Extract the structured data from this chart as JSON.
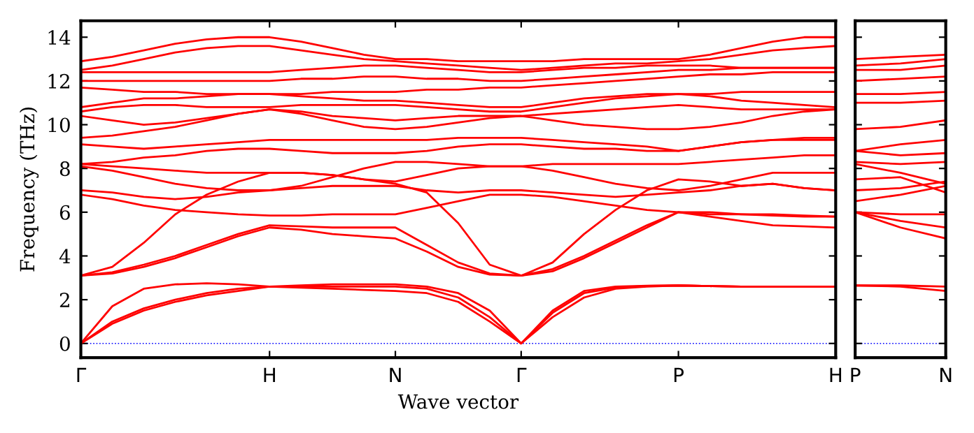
{
  "chart_data": [
    {
      "type": "line",
      "xlabel": "Wave vector",
      "ylabel": "Frequency (THz)",
      "line_style": "solid",
      "marker": "none",
      "grid": false,
      "legend": false,
      "categories": [
        "Γ",
        null,
        null,
        null,
        null,
        null,
        "H",
        null,
        null,
        null,
        "N",
        null,
        null,
        null,
        "Γ",
        null,
        null,
        null,
        null,
        "P",
        null,
        null,
        null,
        null,
        "H"
      ],
      "ylim": [
        -0.65,
        14.75
      ],
      "yticks": [
        0,
        2,
        4,
        6,
        8,
        10,
        12,
        14
      ],
      "ref_lines": [
        {
          "axis": "y",
          "value": 0,
          "color": "#0000ff",
          "line_style": "dotted"
        }
      ],
      "series": [
        {
          "color": "#ff0000",
          "values": [
            0,
            0.9,
            1.5,
            1.9,
            2.2,
            2.4,
            2.6,
            2.55,
            2.5,
            2.45,
            2.4,
            2.3,
            1.9,
            1.0,
            0,
            1.2,
            2.1,
            2.5,
            2.6,
            2.65,
            2.62,
            2.6,
            2.6,
            2.6,
            2.6
          ]
        },
        {
          "color": "#ff0000",
          "values": [
            0,
            1.0,
            1.6,
            2.0,
            2.3,
            2.5,
            2.6,
            2.6,
            2.6,
            2.6,
            2.6,
            2.5,
            2.1,
            1.2,
            0,
            1.4,
            2.3,
            2.55,
            2.63,
            2.65,
            2.62,
            2.6,
            2.6,
            2.6,
            2.6
          ]
        },
        {
          "color": "#ff0000",
          "values": [
            0,
            1.7,
            2.5,
            2.7,
            2.75,
            2.7,
            2.6,
            2.65,
            2.7,
            2.7,
            2.7,
            2.6,
            2.3,
            1.5,
            0,
            1.5,
            2.4,
            2.6,
            2.64,
            2.65,
            2.62,
            2.6,
            2.6,
            2.6,
            2.6
          ]
        },
        {
          "color": "#ff0000",
          "values": [
            3.1,
            3.2,
            3.5,
            3.9,
            4.4,
            4.9,
            5.3,
            5.2,
            5.0,
            4.9,
            4.8,
            4.2,
            3.5,
            3.15,
            3.1,
            3.3,
            3.9,
            4.6,
            5.3,
            6.0,
            5.8,
            5.6,
            5.4,
            5.35,
            5.3
          ]
        },
        {
          "color": "#ff0000",
          "values": [
            3.1,
            3.25,
            3.6,
            4.0,
            4.5,
            5.0,
            5.4,
            5.35,
            5.3,
            5.3,
            5.3,
            4.5,
            3.7,
            3.2,
            3.1,
            3.4,
            4.0,
            4.7,
            5.4,
            6.0,
            6.0,
            5.9,
            5.9,
            5.85,
            5.8
          ]
        },
        {
          "color": "#ff0000",
          "values": [
            3.1,
            3.5,
            4.6,
            5.9,
            6.8,
            7.4,
            7.8,
            7.8,
            7.7,
            7.5,
            7.3,
            6.9,
            5.5,
            3.6,
            3.1,
            3.7,
            5.0,
            6.1,
            7.0,
            7.5,
            7.4,
            7.2,
            7.3,
            7.1,
            7.0
          ]
        },
        {
          "color": "#ff0000",
          "values": [
            6.8,
            6.6,
            6.3,
            6.1,
            6.0,
            5.9,
            5.85,
            5.85,
            5.9,
            5.9,
            5.9,
            6.2,
            6.5,
            6.8,
            6.8,
            6.7,
            6.5,
            6.3,
            6.1,
            6.0,
            5.9,
            5.9,
            5.85,
            5.8,
            5.8
          ]
        },
        {
          "color": "#ff0000",
          "values": [
            7.0,
            6.9,
            6.7,
            6.6,
            6.7,
            6.9,
            7.0,
            7.1,
            7.2,
            7.2,
            7.2,
            7.0,
            6.9,
            7.0,
            7.0,
            6.9,
            6.8,
            6.7,
            6.8,
            6.9,
            7.0,
            7.2,
            7.3,
            7.1,
            7.0
          ]
        },
        {
          "color": "#ff0000",
          "values": [
            8.1,
            7.9,
            7.6,
            7.3,
            7.1,
            7.0,
            7.0,
            7.2,
            7.6,
            8.0,
            8.3,
            8.3,
            8.2,
            8.1,
            8.1,
            7.9,
            7.6,
            7.3,
            7.1,
            7.0,
            7.2,
            7.5,
            7.8,
            7.8,
            7.8
          ]
        },
        {
          "color": "#ff0000",
          "values": [
            8.2,
            8.1,
            8.0,
            7.9,
            7.8,
            7.8,
            7.8,
            7.8,
            7.7,
            7.5,
            7.4,
            7.7,
            8.0,
            8.1,
            8.1,
            8.2,
            8.2,
            8.2,
            8.2,
            8.2,
            8.3,
            8.4,
            8.5,
            8.6,
            8.6
          ]
        },
        {
          "color": "#ff0000",
          "values": [
            8.2,
            8.3,
            8.5,
            8.6,
            8.8,
            8.9,
            8.9,
            8.8,
            8.7,
            8.7,
            8.7,
            8.8,
            9.0,
            9.1,
            9.1,
            9.0,
            8.9,
            8.9,
            8.8,
            8.8,
            9.0,
            9.2,
            9.3,
            9.3,
            9.3
          ]
        },
        {
          "color": "#ff0000",
          "values": [
            9.1,
            9.0,
            8.9,
            9.0,
            9.1,
            9.2,
            9.3,
            9.3,
            9.3,
            9.3,
            9.3,
            9.3,
            9.4,
            9.4,
            9.4,
            9.3,
            9.2,
            9.1,
            9.0,
            8.8,
            9.0,
            9.2,
            9.3,
            9.4,
            9.4
          ]
        },
        {
          "color": "#ff0000",
          "values": [
            9.4,
            9.5,
            9.7,
            9.9,
            10.2,
            10.5,
            10.7,
            10.5,
            10.2,
            9.9,
            9.8,
            9.9,
            10.1,
            10.3,
            10.4,
            10.2,
            10.0,
            9.9,
            9.8,
            9.8,
            9.9,
            10.1,
            10.4,
            10.6,
            10.7
          ]
        },
        {
          "color": "#ff0000",
          "values": [
            10.4,
            10.2,
            10.0,
            10.1,
            10.3,
            10.5,
            10.7,
            10.6,
            10.4,
            10.3,
            10.2,
            10.3,
            10.4,
            10.4,
            10.4,
            10.5,
            10.6,
            10.7,
            10.8,
            10.9,
            10.8,
            10.7,
            10.7,
            10.7,
            10.7
          ]
        },
        {
          "color": "#ff0000",
          "values": [
            10.6,
            10.8,
            10.9,
            10.9,
            10.8,
            10.8,
            10.8,
            10.9,
            10.9,
            10.9,
            10.9,
            10.8,
            10.7,
            10.6,
            10.6,
            10.8,
            11.0,
            11.2,
            11.3,
            11.4,
            11.3,
            11.1,
            11.0,
            10.9,
            10.8
          ]
        },
        {
          "color": "#ff0000",
          "values": [
            10.8,
            11.0,
            11.2,
            11.2,
            11.3,
            11.4,
            11.4,
            11.3,
            11.2,
            11.1,
            11.1,
            11.0,
            10.9,
            10.8,
            10.8,
            11.0,
            11.2,
            11.3,
            11.4,
            11.4,
            11.4,
            11.5,
            11.5,
            11.5,
            11.5
          ]
        },
        {
          "color": "#ff0000",
          "values": [
            11.7,
            11.6,
            11.5,
            11.5,
            11.4,
            11.4,
            11.4,
            11.4,
            11.5,
            11.5,
            11.5,
            11.6,
            11.6,
            11.7,
            11.7,
            11.8,
            11.9,
            12.0,
            12.1,
            12.2,
            12.3,
            12.3,
            12.4,
            12.4,
            12.4
          ]
        },
        {
          "color": "#ff0000",
          "values": [
            12.0,
            12.0,
            12.0,
            12.0,
            12.0,
            12.0,
            12.0,
            12.1,
            12.1,
            12.2,
            12.2,
            12.1,
            12.1,
            12.0,
            12.0,
            12.1,
            12.2,
            12.3,
            12.4,
            12.5,
            12.5,
            12.6,
            12.6,
            12.6,
            12.6
          ]
        },
        {
          "color": "#ff0000",
          "values": [
            12.4,
            12.4,
            12.4,
            12.4,
            12.4,
            12.4,
            12.4,
            12.5,
            12.6,
            12.7,
            12.7,
            12.6,
            12.5,
            12.4,
            12.4,
            12.5,
            12.6,
            12.6,
            12.7,
            12.7,
            12.7,
            12.6,
            12.6,
            12.6,
            12.6
          ]
        },
        {
          "color": "#ff0000",
          "values": [
            12.5,
            12.7,
            13.0,
            13.3,
            13.5,
            13.6,
            13.6,
            13.4,
            13.2,
            13.0,
            12.9,
            12.8,
            12.7,
            12.6,
            12.5,
            12.6,
            12.7,
            12.8,
            12.8,
            12.9,
            13.0,
            13.2,
            13.4,
            13.5,
            13.6
          ]
        },
        {
          "color": "#ff0000",
          "values": [
            12.9,
            13.1,
            13.4,
            13.7,
            13.9,
            14.0,
            14.0,
            13.8,
            13.5,
            13.2,
            13.0,
            13.0,
            12.9,
            12.9,
            12.9,
            12.9,
            13.0,
            13.0,
            13.0,
            13.0,
            13.2,
            13.5,
            13.8,
            14.0,
            14.0
          ]
        }
      ]
    },
    {
      "type": "line",
      "line_style": "solid",
      "marker": "none",
      "grid": false,
      "legend": false,
      "tick_labels": "x",
      "categories": [
        "P",
        null,
        "N"
      ],
      "ylim": [
        -0.65,
        14.75
      ],
      "yticks": [
        0,
        2,
        4,
        6,
        8,
        10,
        12,
        14
      ],
      "ref_lines": [
        {
          "axis": "y",
          "value": 0,
          "color": "#0000ff",
          "line_style": "dotted"
        }
      ],
      "series": [
        {
          "color": "#ff0000",
          "values": [
            2.65,
            2.6,
            2.4
          ]
        },
        {
          "color": "#ff0000",
          "values": [
            2.65,
            2.65,
            2.6
          ]
        },
        {
          "color": "#ff0000",
          "values": [
            6.0,
            5.3,
            4.8
          ]
        },
        {
          "color": "#ff0000",
          "values": [
            6.0,
            5.6,
            5.3
          ]
        },
        {
          "color": "#ff0000",
          "values": [
            6.0,
            5.9,
            5.9
          ]
        },
        {
          "color": "#ff0000",
          "values": [
            6.5,
            6.8,
            7.2
          ]
        },
        {
          "color": "#ff0000",
          "values": [
            7.0,
            7.1,
            7.4
          ]
        },
        {
          "color": "#ff0000",
          "values": [
            7.5,
            7.6,
            6.9
          ]
        },
        {
          "color": "#ff0000",
          "values": [
            8.2,
            7.8,
            7.3
          ]
        },
        {
          "color": "#ff0000",
          "values": [
            8.3,
            8.2,
            8.3
          ]
        },
        {
          "color": "#ff0000",
          "values": [
            8.8,
            8.6,
            8.7
          ]
        },
        {
          "color": "#ff0000",
          "values": [
            8.8,
            9.1,
            9.3
          ]
        },
        {
          "color": "#ff0000",
          "values": [
            9.8,
            9.9,
            10.2
          ]
        },
        {
          "color": "#ff0000",
          "values": [
            11.0,
            11.0,
            11.1
          ]
        },
        {
          "color": "#ff0000",
          "values": [
            11.4,
            11.4,
            11.5
          ]
        },
        {
          "color": "#ff0000",
          "values": [
            12.0,
            12.1,
            12.2
          ]
        },
        {
          "color": "#ff0000",
          "values": [
            12.5,
            12.5,
            12.7
          ]
        },
        {
          "color": "#ff0000",
          "values": [
            12.7,
            12.8,
            13.0
          ]
        },
        {
          "color": "#ff0000",
          "values": [
            13.0,
            13.1,
            13.2
          ]
        }
      ]
    }
  ]
}
